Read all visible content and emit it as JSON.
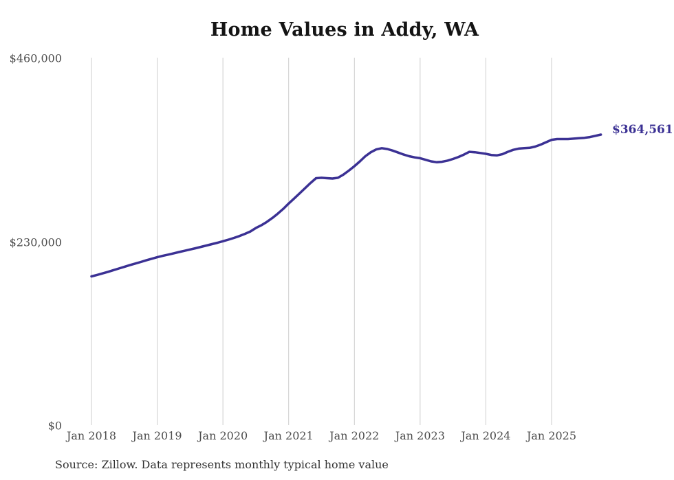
{
  "title": "Home Values in Addy, WA",
  "footer": {
    "source_note": "Source: Zillow. Data represents monthly typical home value"
  },
  "colors": {
    "line": "#3b3194",
    "grid": "#cccccc",
    "title_text": "#141414",
    "axis_text": "#4d4d4d",
    "annotation_text": "#3b3194",
    "background": "#ffffff"
  },
  "chart_data": {
    "type": "line",
    "title": "Home Values in Addy, WA",
    "xlabel": "",
    "ylabel": "",
    "x_unit": "month",
    "x_start_month": "Jan 2018",
    "x_end_month": "Oct 2025",
    "x_tick_labels": [
      "Jan 2018",
      "Jan 2019",
      "Jan 2020",
      "Jan 2021",
      "Jan 2022",
      "Jan 2023",
      "Jan 2024",
      "Jan 2025"
    ],
    "y_ticks": [
      {
        "label": "$460,000",
        "value": 460000
      },
      {
        "label": "$230,000",
        "value": 230000
      },
      {
        "label": "$0",
        "value": 0
      }
    ],
    "ylim": [
      0,
      460000
    ],
    "grid": "vertical-only",
    "legend_position": "none",
    "end_point_label": "$364,561",
    "end_point_value": 364561,
    "series": [
      {
        "name": "Typical home value",
        "start_month": "2018-01",
        "values": [
          187000,
          188800,
          190700,
          192700,
          194800,
          196900,
          199000,
          201100,
          203100,
          205100,
          207100,
          209100,
          211000,
          212700,
          214300,
          215900,
          217500,
          219100,
          220700,
          222300,
          224000,
          225700,
          227400,
          229100,
          231000,
          233000,
          235200,
          237500,
          240200,
          243200,
          247500,
          251000,
          255200,
          260000,
          265500,
          271500,
          278200,
          284500,
          291000,
          297500,
          304000,
          310000,
          310500,
          310000,
          309500,
          310500,
          314500,
          319500,
          325000,
          331000,
          337500,
          342500,
          346000,
          347500,
          346500,
          344500,
          342000,
          339500,
          337500,
          336000,
          335000,
          333000,
          331000,
          330000,
          330500,
          332000,
          334000,
          336500,
          339500,
          343000,
          342500,
          341500,
          340500,
          339000,
          338500,
          340000,
          343000,
          345500,
          347000,
          347500,
          348000,
          349500,
          352000,
          355000,
          358000,
          359000,
          359000,
          359000,
          359500,
          360000,
          360500,
          361500,
          363000,
          364561
        ]
      }
    ]
  }
}
